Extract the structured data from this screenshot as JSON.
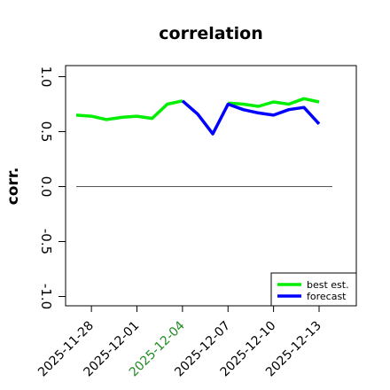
{
  "chart_data": {
    "type": "line",
    "title": "correlation",
    "ylabel": "corr.",
    "xlabel": "",
    "ylim": [
      -1.05,
      1.05
    ],
    "yticks": [
      "-1.0",
      "-0.5",
      "0.0",
      "0.5",
      "1.0"
    ],
    "ytick_values": [
      -1.0,
      -0.5,
      0.0,
      0.5,
      1.0
    ],
    "x": [
      "2025-11-27",
      "2025-11-28",
      "2025-11-29",
      "2025-11-30",
      "2025-12-01",
      "2025-12-02",
      "2025-12-03",
      "2025-12-04",
      "2025-12-05",
      "2025-12-06",
      "2025-12-07",
      "2025-12-08",
      "2025-12-09",
      "2025-12-10",
      "2025-12-11",
      "2025-12-12",
      "2025-12-13"
    ],
    "xticks": [
      "2025-11-28",
      "2025-12-01",
      "2025-12-04",
      "2025-12-07",
      "2025-12-10",
      "2025-12-13"
    ],
    "highlight_tick": "2025-12-04",
    "highlight_color": "#228B22",
    "reference_line": 0,
    "grid": false,
    "legend_position": "bottom-right",
    "series": [
      {
        "name": "best est.",
        "color": "#00ee00",
        "values": [
          0.65,
          0.64,
          0.61,
          0.63,
          0.64,
          0.62,
          0.75,
          0.78,
          null,
          null,
          0.76,
          0.75,
          0.73,
          0.77,
          0.75,
          0.8,
          0.77
        ]
      },
      {
        "name": "forecast",
        "color": "#0000ff",
        "values": [
          null,
          null,
          null,
          null,
          null,
          null,
          null,
          0.78,
          0.66,
          0.48,
          0.75,
          0.7,
          0.67,
          0.65,
          0.7,
          0.72,
          0.57
        ]
      }
    ]
  }
}
